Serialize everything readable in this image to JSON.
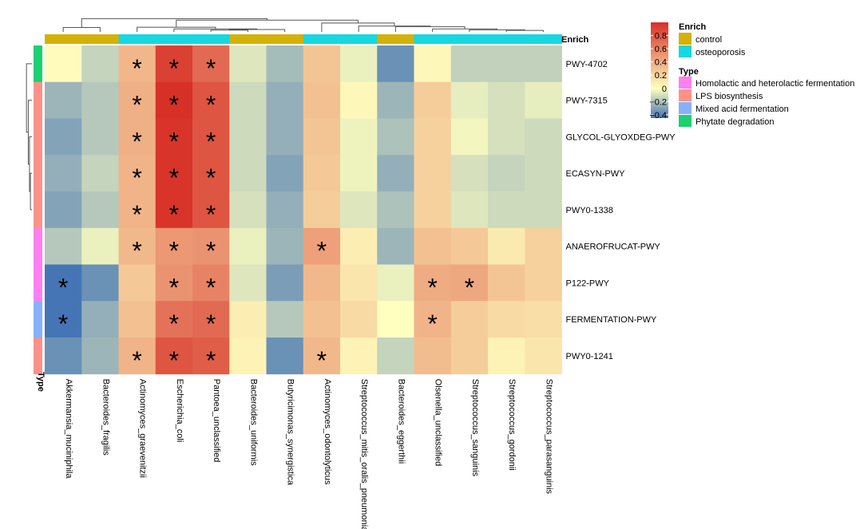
{
  "chart_data": {
    "type": "heatmap",
    "columns": [
      "Akkermansia_muciniphila",
      "Bacteroides_fragilis",
      "Actinomyces_graevenitzii",
      "Escherichia_coli",
      "Pantoea_unclassified",
      "Bacteroides_uniformis",
      "Butyricimonas_synergistica",
      "Actinomyces_odontolyticus",
      "Streptococcus_mitis_oralis_pneumoniae",
      "Bacteroides_eggerthii",
      "Olsenella_unclassified",
      "Streptococcus_sanguinis",
      "Streptococcus_gordonii",
      "Streptococcus_parasanguinis"
    ],
    "rows": [
      "PWY-4702",
      "PWY-7315",
      "GLYCOL-GLYOXDEG-PWY",
      "ECASYN-PWY",
      "PWY0-1338",
      "ANAEROFRUCAT-PWY",
      "P122-PWY",
      "FERMENTATION-PWY",
      "PWY0-1241"
    ],
    "values": [
      [
        0.02,
        -0.14,
        0.35,
        0.92,
        0.72,
        -0.08,
        -0.22,
        0.28,
        -0.05,
        -0.36,
        0.04,
        -0.15,
        -0.15,
        -0.15
      ],
      [
        -0.24,
        -0.18,
        0.38,
        1.0,
        0.82,
        -0.12,
        -0.26,
        0.3,
        0.04,
        -0.24,
        0.24,
        -0.06,
        -0.1,
        -0.06
      ],
      [
        -0.3,
        -0.18,
        0.38,
        0.98,
        0.82,
        -0.12,
        -0.26,
        0.28,
        -0.04,
        -0.2,
        0.22,
        -0.03,
        -0.1,
        -0.12
      ],
      [
        -0.26,
        -0.14,
        0.36,
        0.98,
        0.82,
        -0.12,
        -0.3,
        0.26,
        -0.04,
        -0.26,
        0.22,
        -0.1,
        -0.14,
        -0.12
      ],
      [
        -0.3,
        -0.18,
        0.36,
        0.98,
        0.82,
        -0.1,
        -0.26,
        0.24,
        -0.08,
        -0.2,
        0.22,
        -0.08,
        -0.12,
        -0.12
      ],
      [
        -0.18,
        -0.05,
        0.34,
        0.5,
        0.52,
        -0.05,
        -0.24,
        0.46,
        0.08,
        -0.24,
        0.3,
        0.26,
        0.1,
        0.22
      ],
      [
        -0.48,
        -0.36,
        0.26,
        0.52,
        0.6,
        -0.08,
        -0.32,
        0.34,
        0.12,
        -0.05,
        0.4,
        0.42,
        0.28,
        0.22
      ],
      [
        -0.52,
        -0.26,
        0.3,
        0.68,
        0.72,
        0.08,
        -0.18,
        0.3,
        0.18,
        0.0,
        0.36,
        0.24,
        0.18,
        0.16
      ],
      [
        -0.36,
        -0.24,
        0.36,
        0.82,
        0.78,
        0.06,
        -0.36,
        0.34,
        0.06,
        -0.14,
        0.32,
        0.24,
        0.06,
        0.12
      ]
    ],
    "significance": [
      [
        0,
        0,
        1,
        1,
        1,
        0,
        0,
        0,
        0,
        0,
        0,
        0,
        0,
        0
      ],
      [
        0,
        0,
        1,
        1,
        1,
        0,
        0,
        0,
        0,
        0,
        0,
        0,
        0,
        0
      ],
      [
        0,
        0,
        1,
        1,
        1,
        0,
        0,
        0,
        0,
        0,
        0,
        0,
        0,
        0
      ],
      [
        0,
        0,
        1,
        1,
        1,
        0,
        0,
        0,
        0,
        0,
        0,
        0,
        0,
        0
      ],
      [
        0,
        0,
        1,
        1,
        1,
        0,
        0,
        0,
        0,
        0,
        0,
        0,
        0,
        0
      ],
      [
        0,
        0,
        1,
        1,
        1,
        0,
        0,
        1,
        0,
        0,
        0,
        0,
        0,
        0
      ],
      [
        1,
        0,
        0,
        1,
        1,
        0,
        0,
        0,
        0,
        0,
        1,
        1,
        0,
        0
      ],
      [
        1,
        0,
        0,
        1,
        1,
        0,
        0,
        0,
        0,
        0,
        1,
        0,
        0,
        0
      ],
      [
        0,
        0,
        1,
        1,
        1,
        0,
        0,
        1,
        0,
        0,
        0,
        0,
        0,
        0
      ]
    ],
    "significance_marker": "*",
    "column_enrich": [
      "control",
      "control",
      "osteoporosis",
      "osteoporosis",
      "osteoporosis",
      "control",
      "control",
      "osteoporosis",
      "osteoporosis",
      "control",
      "osteoporosis",
      "osteoporosis",
      "osteoporosis",
      "osteoporosis"
    ],
    "row_type": [
      "Phytate degradation",
      "LPS biosynthesis",
      "LPS biosynthesis",
      "LPS biosynthesis",
      "LPS biosynthesis",
      "Homolactic and heterolactic fermentation",
      "Homolactic and heterolactic fermentation",
      "Mixed acid fermentation",
      "LPS biosynthesis"
    ],
    "column_annotation_label": "Enrich",
    "row_annotation_label": "Type",
    "color_scale": {
      "min": -0.45,
      "max": 1.0,
      "stops": [
        {
          "value": -0.45,
          "color": "#4575b4"
        },
        {
          "value": 0.0,
          "color": "#ffffbf"
        },
        {
          "value": 1.0,
          "color": "#d73027"
        }
      ],
      "ticks": [
        0.8,
        0.6,
        0.4,
        0.2,
        0,
        -0.2,
        -0.4
      ],
      "tick_labels": [
        "0.8",
        "0.6",
        "0.4",
        "0.2",
        "0",
        "−0.2",
        "−0.4"
      ]
    },
    "legend": {
      "enrich": {
        "title": "Enrich",
        "items": [
          {
            "label": "control",
            "color": "#d4b106"
          },
          {
            "label": "osteoporosis",
            "color": "#17d7e0"
          }
        ]
      },
      "type": {
        "title": "Type",
        "items": [
          {
            "label": "Homolactic and heterolactic fermentation",
            "color": "#ff7ff0"
          },
          {
            "label": "LPS biosynthesis",
            "color": "#fb928a"
          },
          {
            "label": "Mixed acid fermentation",
            "color": "#88b0fa"
          },
          {
            "label": "Phytate degradation",
            "color": "#1dd070"
          }
        ]
      }
    },
    "col_dendrogram": [
      {
        "left": 4,
        "right": 5,
        "height": 0.06
      },
      {
        "left": 5,
        "right": 6,
        "height": 0.08
      },
      {
        "left": 3,
        "right": 4,
        "height": 0.1
      },
      {
        "left": 2,
        "right": 3,
        "height": 0.16
      },
      {
        "left": 0,
        "right": 1,
        "height": 0.15
      },
      {
        "left": 12,
        "right": 13,
        "height": 0.05
      },
      {
        "left": 11,
        "right": 12,
        "height": 0.07
      },
      {
        "left": 10,
        "right": 11,
        "height": 0.1
      },
      {
        "left": 9,
        "right": 10,
        "height": 0.18
      },
      {
        "left": 8,
        "right": 9,
        "height": 0.2
      },
      {
        "left": 7,
        "right": 8,
        "height": 0.3
      },
      {
        "left": 6,
        "right": 7,
        "height": 0.4
      },
      {
        "left": 0,
        "right": 6,
        "height": 0.45
      },
      {
        "left": 0,
        "right": 1,
        "height": 1.0
      }
    ],
    "row_dendrogram": [
      {
        "left": 3,
        "right": 4,
        "height": 0.05
      },
      {
        "left": 2,
        "right": 3,
        "height": 0.08
      },
      {
        "left": 1,
        "right": 2,
        "height": 0.12
      },
      {
        "left": 0,
        "right": 1,
        "height": 0.18
      },
      {
        "left": 2,
        "right": 3,
        "height": 0.2
      },
      {
        "left": 1,
        "right": 2,
        "height": 0.24
      },
      {
        "left": 0,
        "right": 1,
        "height": 1.0
      }
    ]
  }
}
